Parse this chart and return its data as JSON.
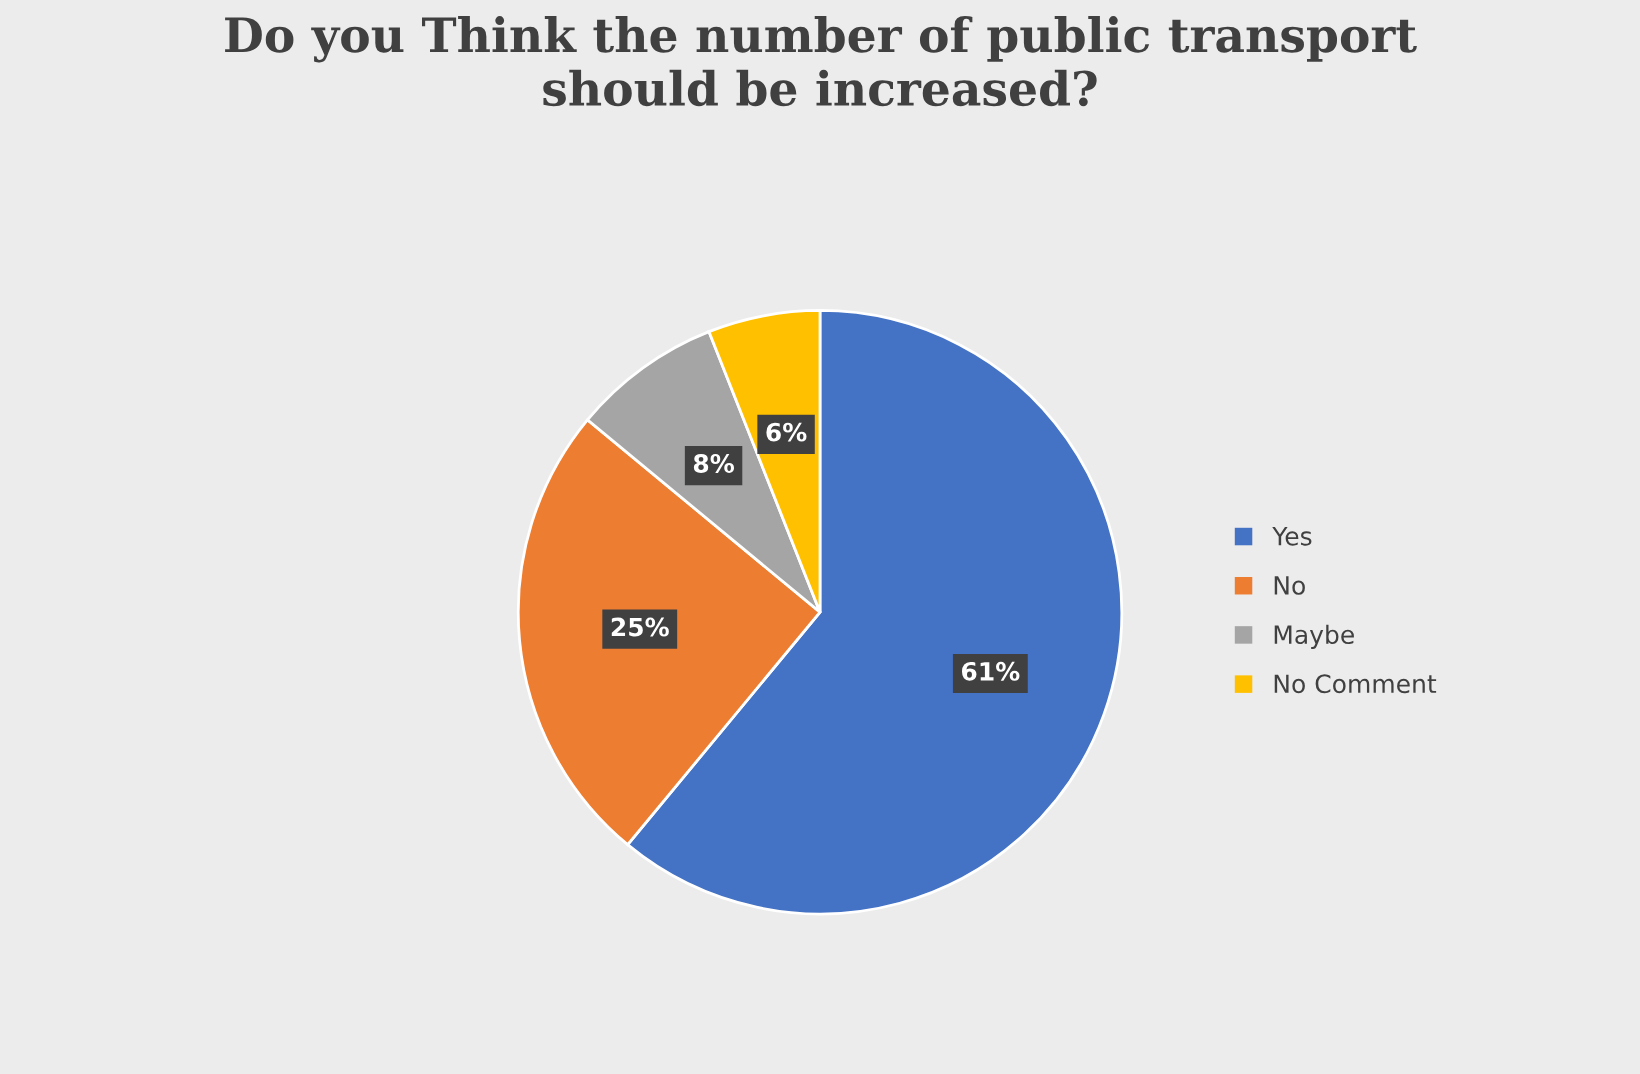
{
  "chart_data": {
    "type": "pie",
    "title": "Do you Think the number of public transport\nshould be increased?",
    "categories": [
      "Yes",
      "No",
      "Maybe",
      "No Comment"
    ],
    "values": [
      61,
      25,
      8,
      6
    ],
    "colors": [
      "#4472c4",
      "#ed7d31",
      "#a5a5a5",
      "#ffc000"
    ],
    "value_labels": [
      "61%",
      "25%",
      "8%",
      "6%"
    ],
    "legend": "right"
  }
}
